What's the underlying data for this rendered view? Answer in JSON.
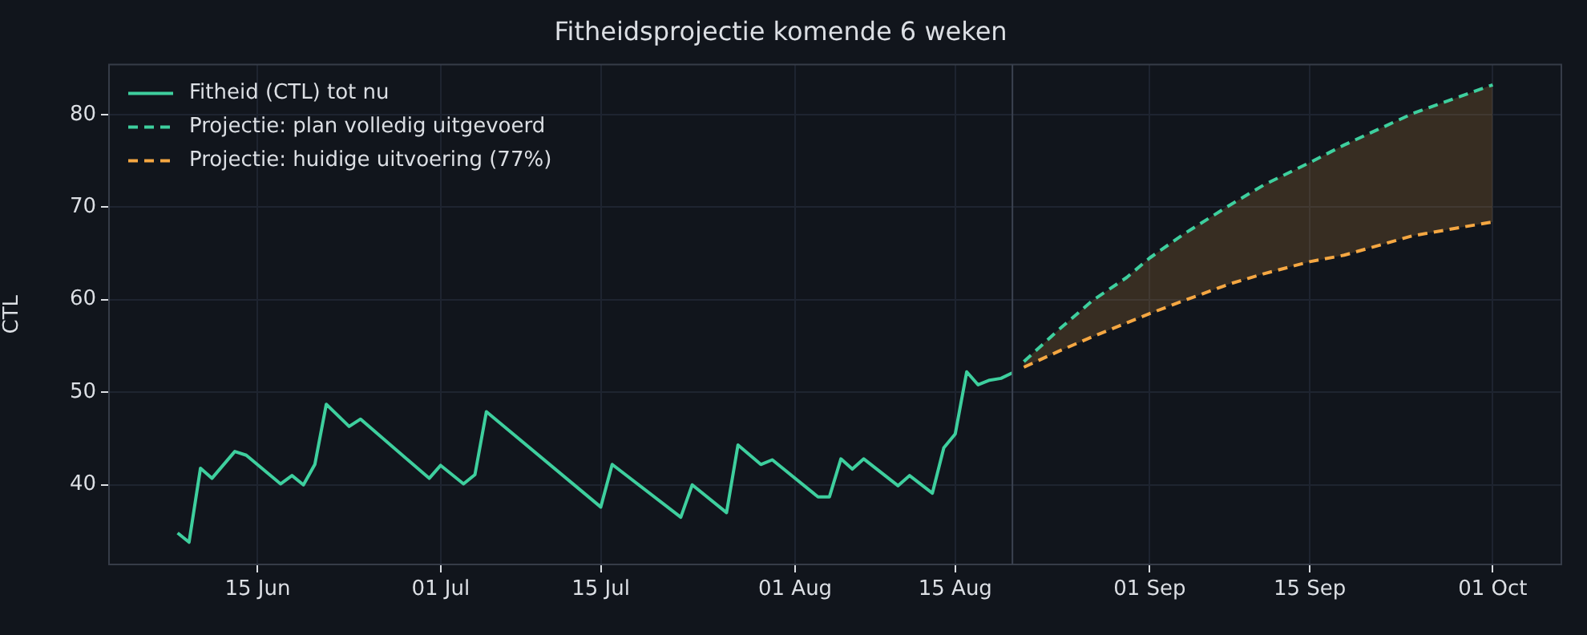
{
  "chart_data": {
    "type": "line",
    "title": "Fitheidsprojectie komende 6 weken",
    "ylabel": "CTL",
    "xlim": [
      "--06-02",
      "--10-07"
    ],
    "xticks": [
      {
        "value": "--06-15",
        "label": "15 Jun"
      },
      {
        "value": "--07-01",
        "label": "01 Jul"
      },
      {
        "value": "--07-15",
        "label": "15 Jul"
      },
      {
        "value": "--08-01",
        "label": "01 Aug"
      },
      {
        "value": "--08-15",
        "label": "15 Aug"
      },
      {
        "value": "--09-01",
        "label": "01 Sep"
      },
      {
        "value": "--09-15",
        "label": "15 Sep"
      },
      {
        "value": "--10-01",
        "label": "01 Oct"
      }
    ],
    "ylim": [
      31.4,
      85.4
    ],
    "yticks": [
      40,
      50,
      60,
      70,
      80
    ],
    "grid": true,
    "legend": "top left",
    "ref_lines": [
      {
        "axis": "x",
        "value": "--08-20",
        "color": "#3b4250"
      }
    ],
    "series": [
      {
        "name": "Fitheid (CTL) tot nu",
        "color": "#3ecf9e",
        "line_style": "solid",
        "x": [
          "--06-08",
          "--06-09",
          "--06-10",
          "--06-11",
          "--06-13",
          "--06-14",
          "--06-17",
          "--06-18",
          "--06-19",
          "--06-20",
          "--06-21",
          "--06-23",
          "--06-24",
          "--06-30",
          "--07-01",
          "--07-03",
          "--07-04",
          "--07-05",
          "--07-15",
          "--07-16",
          "--07-22",
          "--07-23",
          "--07-26",
          "--07-27",
          "--07-29",
          "--07-30",
          "--08-03",
          "--08-04",
          "--08-05",
          "--08-06",
          "--08-07",
          "--08-10",
          "--08-11",
          "--08-13",
          "--08-14",
          "--08-15",
          "--08-16",
          "--08-17",
          "--08-18",
          "--08-19",
          "--08-20"
        ],
        "values": [
          34.8,
          33.8,
          41.8,
          40.7,
          43.6,
          43.2,
          40.1,
          41.0,
          40.0,
          42.2,
          48.7,
          46.3,
          47.1,
          40.7,
          42.1,
          40.1,
          41.1,
          47.9,
          37.6,
          42.2,
          36.5,
          40.0,
          37.0,
          44.3,
          42.2,
          42.7,
          38.7,
          38.7,
          42.8,
          41.7,
          42.8,
          39.9,
          41.0,
          39.1,
          44.0,
          45.5,
          52.2,
          50.8,
          51.3,
          51.5,
          52.1
        ]
      },
      {
        "name": "Projectie: plan volledig uitgevoerd",
        "color": "#3ecf9e",
        "line_style": "dashed",
        "x": [
          "--08-21",
          "--08-24",
          "--08-27",
          "--08-30",
          "--09-01",
          "--09-04",
          "--09-08",
          "--09-11",
          "--09-15",
          "--09-18",
          "--09-24",
          "--10-01"
        ],
        "values": [
          53.3,
          56.7,
          59.9,
          62.4,
          64.5,
          67.1,
          70.2,
          72.4,
          74.8,
          76.7,
          80.1,
          83.2
        ]
      },
      {
        "name": "Projectie: huidige uitvoering (77%)",
        "color": "#f5a742",
        "line_style": "dashed",
        "x": [
          "--08-21",
          "--08-24",
          "--08-27",
          "--08-30",
          "--09-01",
          "--09-04",
          "--09-08",
          "--09-11",
          "--09-15",
          "--09-18",
          "--09-24",
          "--10-01"
        ],
        "values": [
          52.7,
          54.4,
          56.0,
          57.5,
          58.5,
          59.9,
          61.7,
          62.8,
          64.1,
          64.8,
          66.9,
          68.4
        ],
        "lower": [
          52.7,
          54.4,
          56.0,
          57.5,
          58.5,
          59.9,
          61.7,
          62.8,
          64.1,
          64.8,
          66.9,
          68.4
        ],
        "upper": [
          53.3,
          56.7,
          59.9,
          62.4,
          64.5,
          67.1,
          70.2,
          72.4,
          74.8,
          76.7,
          80.1,
          83.2
        ]
      }
    ]
  }
}
